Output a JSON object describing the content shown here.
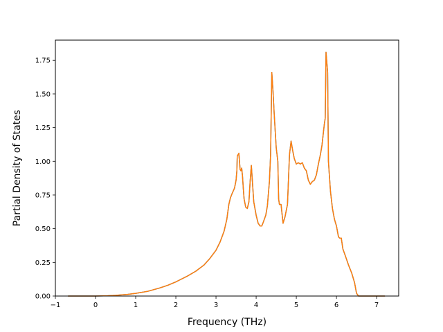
{
  "chart_data": {
    "type": "line",
    "title": "",
    "xlabel": "Frequency (THz)",
    "ylabel": "Partial Density of States",
    "xlim": [
      -1.0,
      7.55
    ],
    "ylim": [
      0.0,
      1.9
    ],
    "x_ticks": [
      -1,
      0,
      1,
      2,
      3,
      4,
      5,
      6,
      7
    ],
    "x_tick_labels": [
      "−1",
      "0",
      "1",
      "2",
      "3",
      "4",
      "5",
      "6",
      "7"
    ],
    "y_ticks": [
      0.0,
      0.25,
      0.5,
      0.75,
      1.0,
      1.25,
      1.5,
      1.75
    ],
    "y_tick_labels": [
      "0.00",
      "0.25",
      "0.50",
      "0.75",
      "1.00",
      "1.25",
      "1.50",
      "1.75"
    ],
    "grid": false,
    "series": [
      {
        "color": "#1f77b4",
        "points": [
          [
            -0.68,
            0.0
          ],
          [
            0.0,
            0.0
          ],
          [
            0.3,
            0.002
          ],
          [
            0.5,
            0.005
          ],
          [
            0.8,
            0.012
          ],
          [
            1.0,
            0.02
          ],
          [
            1.3,
            0.035
          ],
          [
            1.6,
            0.06
          ],
          [
            1.8,
            0.08
          ],
          [
            2.0,
            0.105
          ],
          [
            2.1,
            0.12
          ],
          [
            2.3,
            0.15
          ],
          [
            2.5,
            0.185
          ],
          [
            2.7,
            0.23
          ],
          [
            2.85,
            0.28
          ],
          [
            3.0,
            0.34
          ],
          [
            3.1,
            0.4
          ],
          [
            3.2,
            0.48
          ],
          [
            3.27,
            0.57
          ],
          [
            3.32,
            0.68
          ],
          [
            3.36,
            0.73
          ],
          [
            3.4,
            0.76
          ],
          [
            3.46,
            0.8
          ],
          [
            3.5,
            0.86
          ],
          [
            3.52,
            0.93
          ],
          [
            3.53,
            1.04
          ],
          [
            3.57,
            1.06
          ],
          [
            3.6,
            0.94
          ],
          [
            3.62,
            0.93
          ],
          [
            3.64,
            0.95
          ],
          [
            3.66,
            0.89
          ],
          [
            3.68,
            0.8
          ],
          [
            3.7,
            0.72
          ],
          [
            3.74,
            0.66
          ],
          [
            3.78,
            0.65
          ],
          [
            3.82,
            0.7
          ],
          [
            3.85,
            0.85
          ],
          [
            3.88,
            0.97
          ],
          [
            3.9,
            0.88
          ],
          [
            3.94,
            0.7
          ],
          [
            4.0,
            0.6
          ],
          [
            4.05,
            0.54
          ],
          [
            4.1,
            0.52
          ],
          [
            4.14,
            0.52
          ],
          [
            4.18,
            0.55
          ],
          [
            4.24,
            0.6
          ],
          [
            4.28,
            0.67
          ],
          [
            4.33,
            0.85
          ],
          [
            4.36,
            1.05
          ],
          [
            4.39,
            1.66
          ],
          [
            4.42,
            1.52
          ],
          [
            4.45,
            1.35
          ],
          [
            4.5,
            1.1
          ],
          [
            4.54,
            1.0
          ],
          [
            4.56,
            0.72
          ],
          [
            4.58,
            0.68
          ],
          [
            4.62,
            0.68
          ],
          [
            4.67,
            0.54
          ],
          [
            4.72,
            0.59
          ],
          [
            4.78,
            0.68
          ],
          [
            4.83,
            1.05
          ],
          [
            4.87,
            1.15
          ],
          [
            4.91,
            1.08
          ],
          [
            4.95,
            1.02
          ],
          [
            5.0,
            0.98
          ],
          [
            5.05,
            0.99
          ],
          [
            5.1,
            0.98
          ],
          [
            5.15,
            0.99
          ],
          [
            5.2,
            0.95
          ],
          [
            5.25,
            0.93
          ],
          [
            5.3,
            0.86
          ],
          [
            5.35,
            0.83
          ],
          [
            5.4,
            0.85
          ],
          [
            5.45,
            0.86
          ],
          [
            5.5,
            0.9
          ],
          [
            5.55,
            0.98
          ],
          [
            5.6,
            1.05
          ],
          [
            5.64,
            1.12
          ],
          [
            5.68,
            1.23
          ],
          [
            5.7,
            1.28
          ],
          [
            5.72,
            1.32
          ],
          [
            5.74,
            1.81
          ],
          [
            5.78,
            1.66
          ],
          [
            5.8,
            1.0
          ],
          [
            5.85,
            0.78
          ],
          [
            5.9,
            0.65
          ],
          [
            5.95,
            0.57
          ],
          [
            6.0,
            0.52
          ],
          [
            6.05,
            0.44
          ],
          [
            6.08,
            0.43
          ],
          [
            6.12,
            0.43
          ],
          [
            6.16,
            0.35
          ],
          [
            6.22,
            0.3
          ],
          [
            6.3,
            0.23
          ],
          [
            6.38,
            0.17
          ],
          [
            6.45,
            0.1
          ],
          [
            6.5,
            0.02
          ],
          [
            6.55,
            0.0
          ],
          [
            7.2,
            0.0
          ]
        ]
      },
      {
        "color": "#ff7f0e",
        "points": [
          [
            -0.68,
            0.0
          ],
          [
            0.0,
            0.0
          ],
          [
            0.3,
            0.002
          ],
          [
            0.5,
            0.005
          ],
          [
            0.8,
            0.012
          ],
          [
            1.0,
            0.02
          ],
          [
            1.3,
            0.035
          ],
          [
            1.6,
            0.06
          ],
          [
            1.8,
            0.08
          ],
          [
            2.0,
            0.105
          ],
          [
            2.1,
            0.12
          ],
          [
            2.3,
            0.15
          ],
          [
            2.5,
            0.185
          ],
          [
            2.7,
            0.23
          ],
          [
            2.85,
            0.28
          ],
          [
            3.0,
            0.34
          ],
          [
            3.1,
            0.4
          ],
          [
            3.2,
            0.48
          ],
          [
            3.27,
            0.57
          ],
          [
            3.32,
            0.68
          ],
          [
            3.36,
            0.73
          ],
          [
            3.4,
            0.76
          ],
          [
            3.46,
            0.8
          ],
          [
            3.5,
            0.86
          ],
          [
            3.52,
            0.93
          ],
          [
            3.53,
            1.04
          ],
          [
            3.57,
            1.06
          ],
          [
            3.6,
            0.94
          ],
          [
            3.62,
            0.93
          ],
          [
            3.64,
            0.95
          ],
          [
            3.66,
            0.89
          ],
          [
            3.68,
            0.8
          ],
          [
            3.7,
            0.72
          ],
          [
            3.74,
            0.66
          ],
          [
            3.78,
            0.65
          ],
          [
            3.82,
            0.7
          ],
          [
            3.85,
            0.85
          ],
          [
            3.88,
            0.97
          ],
          [
            3.9,
            0.88
          ],
          [
            3.94,
            0.7
          ],
          [
            4.0,
            0.6
          ],
          [
            4.05,
            0.54
          ],
          [
            4.1,
            0.52
          ],
          [
            4.14,
            0.52
          ],
          [
            4.18,
            0.55
          ],
          [
            4.24,
            0.6
          ],
          [
            4.28,
            0.67
          ],
          [
            4.33,
            0.85
          ],
          [
            4.36,
            1.05
          ],
          [
            4.39,
            1.66
          ],
          [
            4.42,
            1.52
          ],
          [
            4.45,
            1.35
          ],
          [
            4.5,
            1.1
          ],
          [
            4.54,
            1.0
          ],
          [
            4.56,
            0.72
          ],
          [
            4.58,
            0.68
          ],
          [
            4.62,
            0.68
          ],
          [
            4.67,
            0.54
          ],
          [
            4.72,
            0.59
          ],
          [
            4.78,
            0.68
          ],
          [
            4.83,
            1.05
          ],
          [
            4.87,
            1.15
          ],
          [
            4.91,
            1.08
          ],
          [
            4.95,
            1.02
          ],
          [
            5.0,
            0.98
          ],
          [
            5.05,
            0.99
          ],
          [
            5.1,
            0.98
          ],
          [
            5.15,
            0.99
          ],
          [
            5.2,
            0.95
          ],
          [
            5.25,
            0.93
          ],
          [
            5.3,
            0.86
          ],
          [
            5.35,
            0.83
          ],
          [
            5.4,
            0.85
          ],
          [
            5.45,
            0.86
          ],
          [
            5.5,
            0.9
          ],
          [
            5.55,
            0.98
          ],
          [
            5.6,
            1.05
          ],
          [
            5.64,
            1.12
          ],
          [
            5.68,
            1.23
          ],
          [
            5.7,
            1.28
          ],
          [
            5.72,
            1.32
          ],
          [
            5.74,
            1.81
          ],
          [
            5.78,
            1.66
          ],
          [
            5.8,
            1.0
          ],
          [
            5.85,
            0.78
          ],
          [
            5.9,
            0.65
          ],
          [
            5.95,
            0.57
          ],
          [
            6.0,
            0.52
          ],
          [
            6.05,
            0.44
          ],
          [
            6.08,
            0.43
          ],
          [
            6.12,
            0.43
          ],
          [
            6.16,
            0.35
          ],
          [
            6.22,
            0.3
          ],
          [
            6.3,
            0.23
          ],
          [
            6.38,
            0.17
          ],
          [
            6.45,
            0.1
          ],
          [
            6.5,
            0.02
          ],
          [
            6.55,
            0.0
          ],
          [
            7.2,
            0.0
          ]
        ]
      }
    ]
  }
}
